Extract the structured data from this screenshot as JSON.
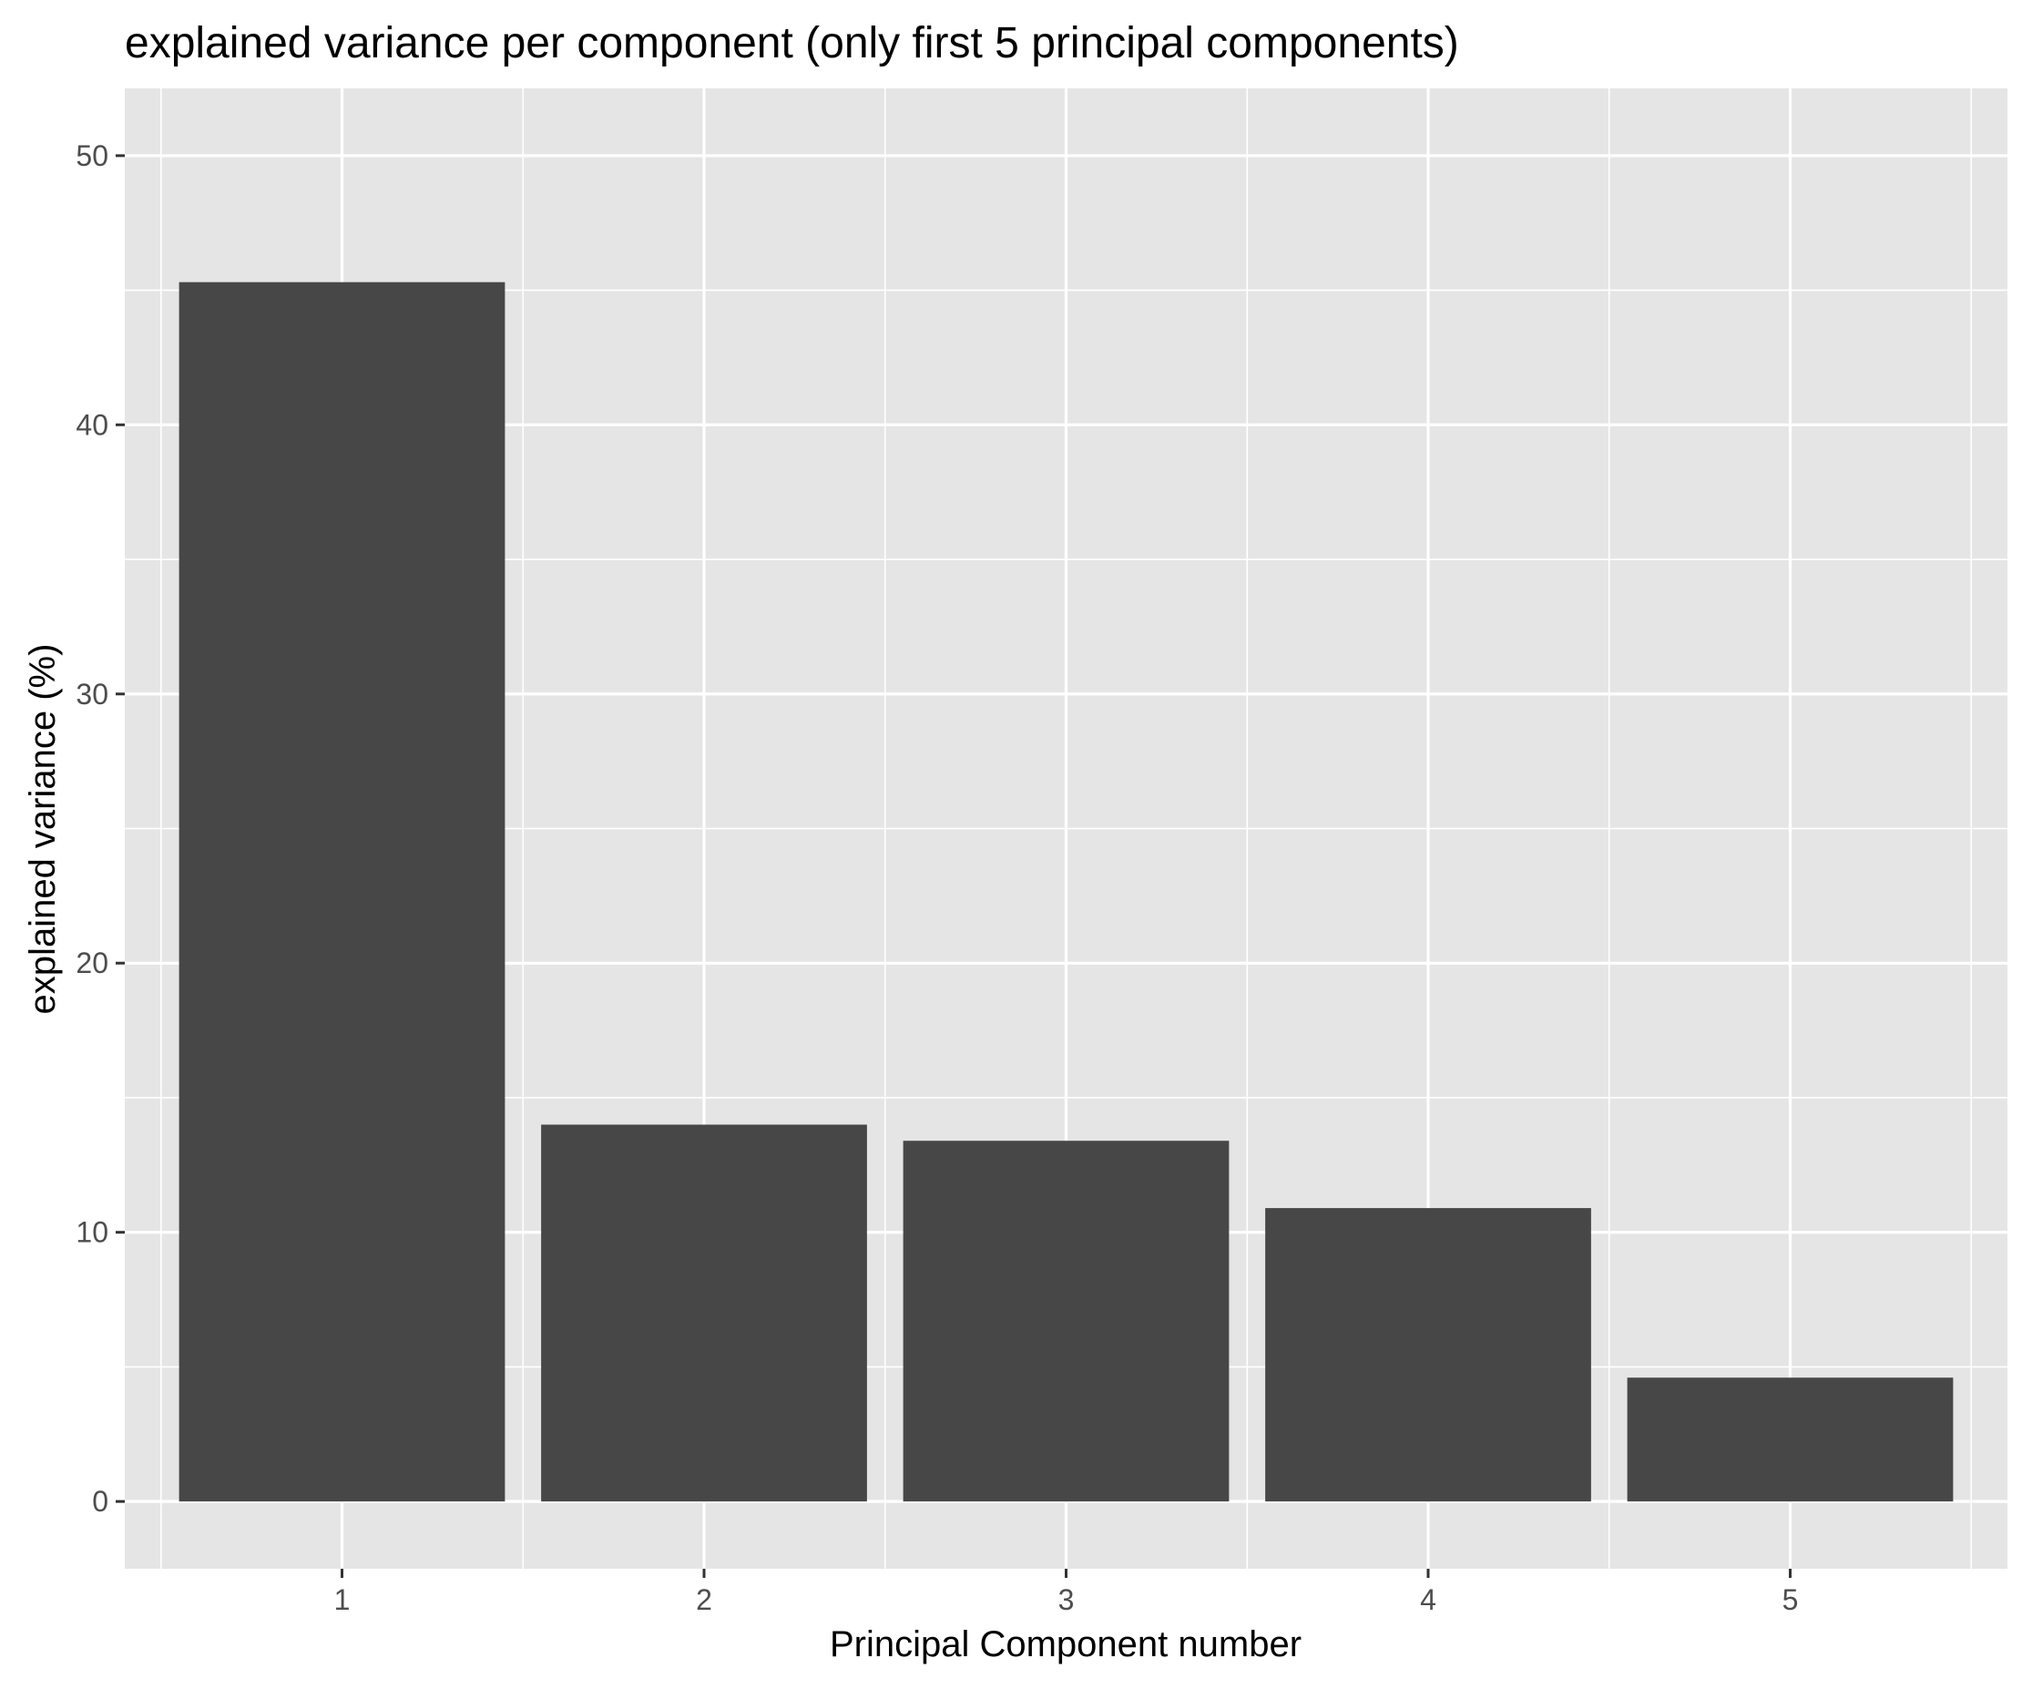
{
  "chart_data": {
    "type": "bar",
    "title": "explained variance per component (only first 5 principal components)",
    "xlabel": "Principal Component number",
    "ylabel": "explained variance (%)",
    "categories": [
      "1",
      "2",
      "3",
      "4",
      "5"
    ],
    "values": [
      45.3,
      14.0,
      13.4,
      10.9,
      4.6
    ],
    "ylim": [
      -2.5,
      52.5
    ],
    "yticks": [
      0,
      10,
      20,
      30,
      40,
      50
    ],
    "grid": true,
    "legend": "none",
    "colors": {
      "bar": "#474747",
      "panel": "#e5e5e5",
      "grid": "#ffffff",
      "tick": "#333333"
    }
  }
}
